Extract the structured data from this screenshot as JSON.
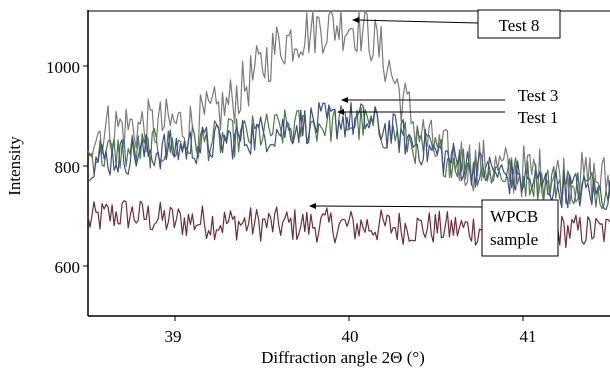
{
  "chart_data": {
    "type": "line",
    "title": "",
    "xlabel": "Diffraction angle 2Θ (°)",
    "ylabel": "Intensity",
    "xlim": [
      38.5,
      41.5
    ],
    "ylim": [
      500,
      1110
    ],
    "x_ticks": [
      {
        "value": 39,
        "label": "39"
      },
      {
        "value": 40,
        "label": "40"
      },
      {
        "value": 41,
        "label": "41"
      }
    ],
    "y_ticks": [
      {
        "value": 600,
        "label": "600"
      },
      {
        "value": 800,
        "label": "800"
      },
      {
        "value": 1000,
        "label": "1000"
      }
    ],
    "grid": false,
    "legend": "none",
    "series": [
      {
        "color": "#7a7a7a",
        "x": [
          38.5,
          38.6,
          38.7,
          38.8,
          38.9,
          39.0,
          39.1,
          39.2,
          39.3,
          39.4,
          39.5,
          39.6,
          39.7,
          39.8,
          39.9,
          40.0,
          40.1,
          40.2,
          40.3,
          40.4,
          40.5,
          40.6,
          40.7,
          40.8,
          40.9,
          41.0,
          41.1,
          41.2,
          41.3,
          41.4,
          41.5
        ],
        "values": [
          860,
          875,
          880,
          878,
          880,
          885,
          880,
          900,
          920,
          960,
          1000,
          1045,
          1060,
          1075,
          1082,
          1085,
          1072,
          1020,
          940,
          870,
          830,
          815,
          805,
          800,
          790,
          790,
          785,
          780,
          775,
          775,
          770
        ]
      },
      {
        "color": "#3f4f84",
        "x": [
          38.5,
          38.6,
          38.7,
          38.8,
          38.9,
          39.0,
          39.1,
          39.2,
          39.3,
          39.4,
          39.5,
          39.6,
          39.7,
          39.8,
          39.9,
          40.0,
          40.1,
          40.2,
          40.3,
          40.4,
          40.5,
          40.6,
          40.7,
          40.8,
          40.9,
          41.0,
          41.1,
          41.2,
          41.3,
          41.4,
          41.5
        ],
        "values": [
          810,
          815,
          820,
          825,
          830,
          835,
          840,
          845,
          850,
          858,
          865,
          872,
          880,
          886,
          890,
          892,
          888,
          875,
          860,
          842,
          825,
          812,
          800,
          790,
          780,
          772,
          765,
          758,
          752,
          748,
          745
        ]
      },
      {
        "color": "#4c7a46",
        "x": [
          38.5,
          38.6,
          38.7,
          38.8,
          38.9,
          39.0,
          39.1,
          39.2,
          39.3,
          39.4,
          39.5,
          39.6,
          39.7,
          39.8,
          39.9,
          40.0,
          40.1,
          40.2,
          40.3,
          40.4,
          40.5,
          40.6,
          40.7,
          40.8,
          40.9,
          41.0,
          41.1,
          41.2,
          41.3,
          41.4,
          41.5
        ],
        "values": [
          820,
          825,
          828,
          832,
          836,
          840,
          845,
          850,
          855,
          860,
          866,
          872,
          877,
          882,
          885,
          886,
          882,
          870,
          856,
          840,
          825,
          812,
          802,
          794,
          786,
          778,
          772,
          766,
          760,
          756,
          752
        ]
      },
      {
        "color": "#6b2e3c",
        "x": [
          38.5,
          38.6,
          38.7,
          38.8,
          38.9,
          39.0,
          39.1,
          39.2,
          39.3,
          39.4,
          39.5,
          39.6,
          39.7,
          39.8,
          39.9,
          40.0,
          40.1,
          40.2,
          40.3,
          40.4,
          40.5,
          40.6,
          40.7,
          40.8,
          40.9,
          41.0,
          41.1,
          41.2,
          41.3,
          41.4,
          41.5
        ],
        "values": [
          690,
          700,
          705,
          700,
          695,
          690,
          690,
          688,
          686,
          685,
          684,
          683,
          682,
          682,
          681,
          680,
          680,
          679,
          678,
          677,
          676,
          675,
          675,
          674,
          673,
          672,
          672,
          671,
          670,
          670,
          670
        ]
      }
    ],
    "annotations": [
      {
        "text": "Test 8",
        "x": 39.99,
        "y": 1085
      },
      {
        "text": "Test 3",
        "x": 39.79,
        "y": 932
      },
      {
        "text": "Test 1",
        "x": 39.76,
        "y": 908
      },
      {
        "text": "WPCB",
        "x": 39.71,
        "y": 722
      },
      {
        "text": "sample",
        "x": 39.71,
        "y": 722
      }
    ]
  }
}
